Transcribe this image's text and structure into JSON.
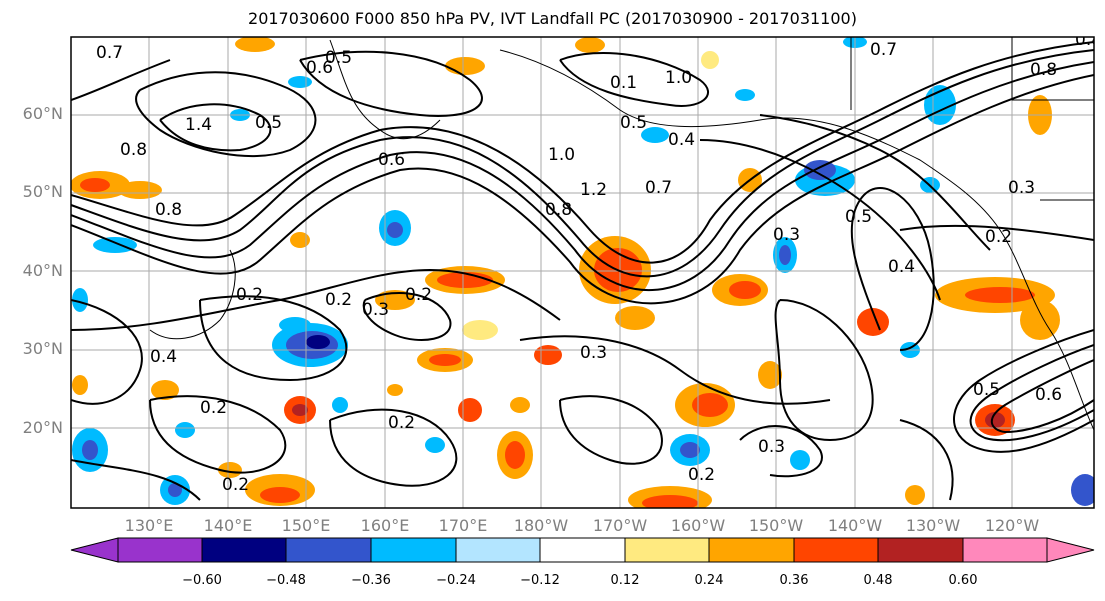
{
  "title": "2017030600 F000 850 hPa PV, IVT Landfall PC (2017030900 - 2017031100)",
  "lat_labels": [
    "60°N",
    "50°N",
    "40°N",
    "30°N",
    "20°N"
  ],
  "lon_labels": [
    "130°E",
    "140°E",
    "150°E",
    "160°E",
    "170°E",
    "180°W",
    "170°W",
    "160°W",
    "150°W",
    "140°W",
    "130°W",
    "120°W"
  ],
  "colorbar": {
    "ticks": [
      "−0.60",
      "−0.48",
      "−0.36",
      "−0.24",
      "−0.12",
      "0.12",
      "0.24",
      "0.36",
      "0.48",
      "0.60"
    ],
    "colors": [
      "#9933cc",
      "#000080",
      "#3355cc",
      "#00bbff",
      "#b3e5ff",
      "#ffffff",
      "#ffea80",
      "#ffa500",
      "#ff4500",
      "#b22222",
      "#ff88bb"
    ]
  },
  "contour_labels": [
    "0.7",
    "0.6",
    "0.5",
    "0.4",
    "0.3",
    "0.2",
    "0.1",
    "1.0",
    "1.2",
    "1.4",
    "0.8"
  ]
}
